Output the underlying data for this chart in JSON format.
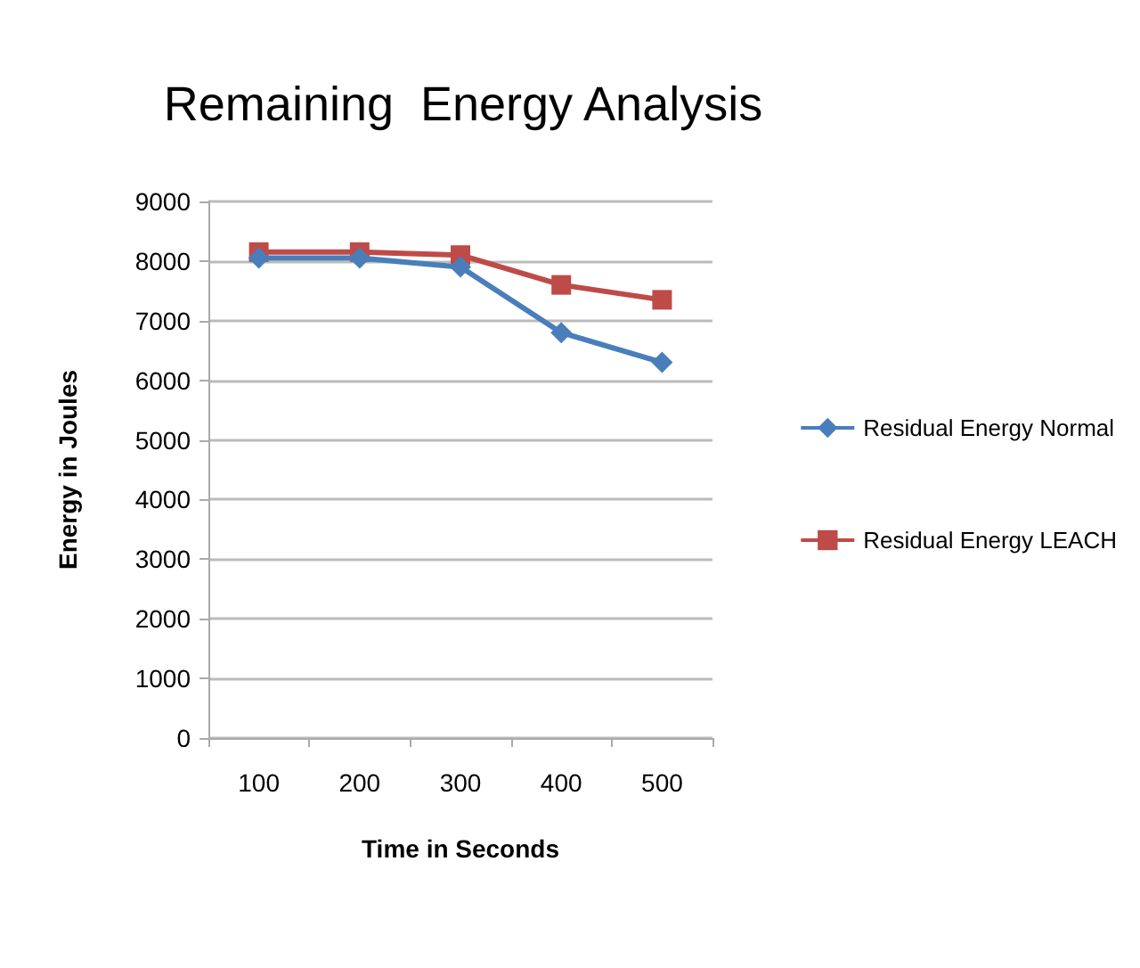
{
  "chart_data": {
    "type": "line",
    "title": "Remaining  Energy Analysis",
    "xlabel": "Time in Seconds",
    "ylabel": "Energy in Joules",
    "categories": [
      "100",
      "200",
      "300",
      "400",
      "500"
    ],
    "series": [
      {
        "name": "Residual Energy Normal",
        "color": "#4a7ebb",
        "marker": "diamond",
        "values": [
          8050,
          8050,
          7900,
          6800,
          6300
        ]
      },
      {
        "name": "Residual Energy LEACH",
        "color": "#be4b48",
        "marker": "square",
        "values": [
          8150,
          8150,
          8100,
          7600,
          7350
        ]
      }
    ],
    "ylim": [
      0,
      9000
    ],
    "yticks": [
      0,
      1000,
      2000,
      3000,
      4000,
      5000,
      6000,
      7000,
      8000,
      9000
    ],
    "grid": "y",
    "legend": "right"
  }
}
